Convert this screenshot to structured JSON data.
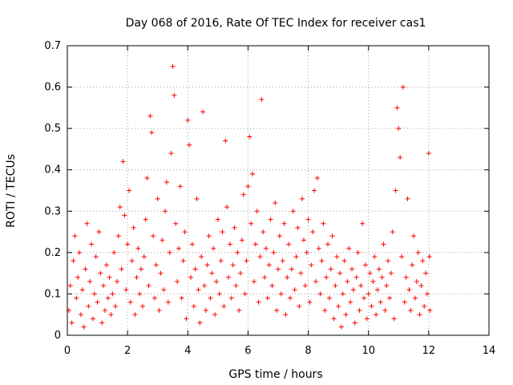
{
  "chart_data": {
    "type": "scatter",
    "title": "Day 068 of 2016, Rate Of TEC Index for receiver cas1",
    "xlabel": "GPS time / hours",
    "ylabel": "ROTI / TECUs",
    "xlim": [
      0,
      14
    ],
    "ylim": [
      0,
      0.7
    ],
    "x_ticks": [
      0,
      2,
      4,
      6,
      8,
      10,
      12,
      14
    ],
    "x_tick_labels": [
      "0",
      "2",
      "4",
      "6",
      "8",
      "10",
      "12",
      "14"
    ],
    "y_ticks": [
      0,
      0.1,
      0.2,
      0.3,
      0.4,
      0.5,
      0.6,
      0.7
    ],
    "y_tick_labels": [
      "0",
      "0.1",
      "0.2",
      "0.3",
      "0.4",
      "0.5",
      "0.6",
      "0.7"
    ],
    "grid": true,
    "marker": "+",
    "color": "#ff0000",
    "series": [
      {
        "name": "ROTI",
        "points": [
          [
            0.05,
            0.06
          ],
          [
            0.1,
            0.12
          ],
          [
            0.15,
            0.03
          ],
          [
            0.2,
            0.18
          ],
          [
            0.25,
            0.24
          ],
          [
            0.3,
            0.09
          ],
          [
            0.35,
            0.14
          ],
          [
            0.4,
            0.2
          ],
          [
            0.45,
            0.05
          ],
          [
            0.5,
            0.11
          ],
          [
            0.55,
            0.02
          ],
          [
            0.6,
            0.16
          ],
          [
            0.65,
            0.27
          ],
          [
            0.7,
            0.07
          ],
          [
            0.75,
            0.13
          ],
          [
            0.8,
            0.22
          ],
          [
            0.85,
            0.04
          ],
          [
            0.9,
            0.1
          ],
          [
            0.95,
            0.19
          ],
          [
            1.0,
            0.08
          ],
          [
            1.05,
            0.25
          ],
          [
            1.1,
            0.15
          ],
          [
            1.15,
            0.03
          ],
          [
            1.2,
            0.12
          ],
          [
            1.25,
            0.06
          ],
          [
            1.3,
            0.17
          ],
          [
            1.35,
            0.09
          ],
          [
            1.4,
            0.14
          ],
          [
            1.45,
            0.05
          ],
          [
            1.5,
            0.1
          ],
          [
            1.55,
            0.2
          ],
          [
            1.6,
            0.07
          ],
          [
            1.65,
            0.13
          ],
          [
            1.7,
            0.24
          ],
          [
            1.75,
            0.31
          ],
          [
            1.8,
            0.16
          ],
          [
            1.85,
            0.42
          ],
          [
            1.9,
            0.29
          ],
          [
            1.95,
            0.11
          ],
          [
            2.0,
            0.22
          ],
          [
            2.05,
            0.35
          ],
          [
            2.1,
            0.08
          ],
          [
            2.15,
            0.18
          ],
          [
            2.2,
            0.26
          ],
          [
            2.25,
            0.05
          ],
          [
            2.3,
            0.14
          ],
          [
            2.35,
            0.21
          ],
          [
            2.4,
            0.1
          ],
          [
            2.45,
            0.16
          ],
          [
            2.5,
            0.07
          ],
          [
            2.55,
            0.19
          ],
          [
            2.6,
            0.28
          ],
          [
            2.65,
            0.38
          ],
          [
            2.7,
            0.12
          ],
          [
            2.75,
            0.53
          ],
          [
            2.8,
            0.49
          ],
          [
            2.85,
            0.24
          ],
          [
            2.9,
            0.09
          ],
          [
            2.95,
            0.17
          ],
          [
            3.0,
            0.33
          ],
          [
            3.05,
            0.06
          ],
          [
            3.1,
            0.15
          ],
          [
            3.15,
            0.23
          ],
          [
            3.2,
            0.11
          ],
          [
            3.25,
            0.3
          ],
          [
            3.3,
            0.37
          ],
          [
            3.35,
            0.08
          ],
          [
            3.4,
            0.2
          ],
          [
            3.45,
            0.44
          ],
          [
            3.5,
            0.65
          ],
          [
            3.55,
            0.58
          ],
          [
            3.6,
            0.27
          ],
          [
            3.65,
            0.13
          ],
          [
            3.7,
            0.21
          ],
          [
            3.75,
            0.36
          ],
          [
            3.8,
            0.09
          ],
          [
            3.85,
            0.18
          ],
          [
            3.9,
            0.25
          ],
          [
            3.95,
            0.04
          ],
          [
            4.0,
            0.52
          ],
          [
            4.05,
            0.46
          ],
          [
            4.1,
            0.14
          ],
          [
            4.15,
            0.22
          ],
          [
            4.2,
            0.07
          ],
          [
            4.25,
            0.16
          ],
          [
            4.3,
            0.33
          ],
          [
            4.35,
            0.11
          ],
          [
            4.4,
            0.03
          ],
          [
            4.45,
            0.19
          ],
          [
            4.5,
            0.54
          ],
          [
            4.55,
            0.12
          ],
          [
            4.6,
            0.06
          ],
          [
            4.65,
            0.17
          ],
          [
            4.7,
            0.24
          ],
          [
            4.75,
            0.09
          ],
          [
            4.8,
            0.15
          ],
          [
            4.85,
            0.21
          ],
          [
            4.9,
            0.05
          ],
          [
            4.95,
            0.13
          ],
          [
            5.0,
            0.28
          ],
          [
            5.05,
            0.1
          ],
          [
            5.1,
            0.18
          ],
          [
            5.15,
            0.25
          ],
          [
            5.2,
            0.07
          ],
          [
            5.25,
            0.47
          ],
          [
            5.3,
            0.31
          ],
          [
            5.35,
            0.14
          ],
          [
            5.4,
            0.22
          ],
          [
            5.45,
            0.09
          ],
          [
            5.5,
            0.17
          ],
          [
            5.55,
            0.26
          ],
          [
            5.6,
            0.12
          ],
          [
            5.65,
            0.2
          ],
          [
            5.7,
            0.06
          ],
          [
            5.75,
            0.15
          ],
          [
            5.8,
            0.23
          ],
          [
            5.85,
            0.34
          ],
          [
            5.9,
            0.1
          ],
          [
            5.95,
            0.18
          ],
          [
            6.0,
            0.36
          ],
          [
            6.05,
            0.48
          ],
          [
            6.1,
            0.27
          ],
          [
            6.15,
            0.39
          ],
          [
            6.2,
            0.13
          ],
          [
            6.25,
            0.22
          ],
          [
            6.3,
            0.3
          ],
          [
            6.35,
            0.08
          ],
          [
            6.4,
            0.19
          ],
          [
            6.45,
            0.57
          ],
          [
            6.5,
            0.25
          ],
          [
            6.55,
            0.14
          ],
          [
            6.6,
            0.21
          ],
          [
            6.65,
            0.09
          ],
          [
            6.7,
            0.17
          ],
          [
            6.75,
            0.28
          ],
          [
            6.8,
            0.12
          ],
          [
            6.85,
            0.2
          ],
          [
            6.9,
            0.32
          ],
          [
            6.95,
            0.06
          ],
          [
            7.0,
            0.16
          ],
          [
            7.05,
            0.24
          ],
          [
            7.1,
            0.1
          ],
          [
            7.15,
            0.18
          ],
          [
            7.2,
            0.27
          ],
          [
            7.25,
            0.05
          ],
          [
            7.3,
            0.14
          ],
          [
            7.35,
            0.22
          ],
          [
            7.4,
            0.09
          ],
          [
            7.45,
            0.16
          ],
          [
            7.5,
            0.3
          ],
          [
            7.55,
            0.11
          ],
          [
            7.6,
            0.19
          ],
          [
            7.65,
            0.26
          ],
          [
            7.7,
            0.07
          ],
          [
            7.75,
            0.15
          ],
          [
            7.8,
            0.33
          ],
          [
            7.85,
            0.23
          ],
          [
            7.9,
            0.12
          ],
          [
            7.95,
            0.2
          ],
          [
            8.0,
            0.28
          ],
          [
            8.05,
            0.08
          ],
          [
            8.1,
            0.17
          ],
          [
            8.15,
            0.25
          ],
          [
            8.2,
            0.35
          ],
          [
            8.25,
            0.13
          ],
          [
            8.3,
            0.38
          ],
          [
            8.35,
            0.21
          ],
          [
            8.4,
            0.1
          ],
          [
            8.45,
            0.18
          ],
          [
            8.5,
            0.27
          ],
          [
            8.55,
            0.06
          ],
          [
            8.6,
            0.14
          ],
          [
            8.65,
            0.22
          ],
          [
            8.7,
            0.09
          ],
          [
            8.75,
            0.16
          ],
          [
            8.8,
            0.24
          ],
          [
            8.85,
            0.04
          ],
          [
            8.9,
            0.12
          ],
          [
            8.95,
            0.19
          ],
          [
            9.0,
            0.07
          ],
          [
            9.05,
            0.15
          ],
          [
            9.1,
            0.02
          ],
          [
            9.15,
            0.1
          ],
          [
            9.2,
            0.18
          ],
          [
            9.25,
            0.05
          ],
          [
            9.3,
            0.13
          ],
          [
            9.35,
            0.21
          ],
          [
            9.4,
            0.08
          ],
          [
            9.45,
            0.16
          ],
          [
            9.5,
            0.11
          ],
          [
            9.55,
            0.03
          ],
          [
            9.6,
            0.14
          ],
          [
            9.65,
            0.2
          ],
          [
            9.7,
            0.06
          ],
          [
            9.75,
            0.12
          ],
          [
            9.8,
            0.27
          ],
          [
            9.85,
            0.09
          ],
          [
            9.9,
            0.17
          ],
          [
            9.95,
            0.04
          ],
          [
            10.0,
            0.1
          ],
          [
            10.05,
            0.15
          ],
          [
            10.1,
            0.07
          ],
          [
            10.15,
            0.13
          ],
          [
            10.2,
            0.19
          ],
          [
            10.25,
            0.05
          ],
          [
            10.3,
            0.11
          ],
          [
            10.35,
            0.16
          ],
          [
            10.4,
            0.08
          ],
          [
            10.45,
            0.14
          ],
          [
            10.5,
            0.22
          ],
          [
            10.55,
            0.06
          ],
          [
            10.6,
            0.12
          ],
          [
            10.65,
            0.18
          ],
          [
            10.7,
            0.09
          ],
          [
            10.75,
            0.15
          ],
          [
            10.8,
            0.25
          ],
          [
            10.85,
            0.04
          ],
          [
            10.9,
            0.35
          ],
          [
            10.95,
            0.55
          ],
          [
            11.0,
            0.5
          ],
          [
            11.05,
            0.43
          ],
          [
            11.1,
            0.19
          ],
          [
            11.15,
            0.6
          ],
          [
            11.2,
            0.08
          ],
          [
            11.25,
            0.14
          ],
          [
            11.3,
            0.33
          ],
          [
            11.35,
            0.11
          ],
          [
            11.4,
            0.06
          ],
          [
            11.45,
            0.17
          ],
          [
            11.5,
            0.24
          ],
          [
            11.55,
            0.09
          ],
          [
            11.6,
            0.13
          ],
          [
            11.65,
            0.2
          ],
          [
            11.7,
            0.05
          ],
          [
            11.75,
            0.12
          ],
          [
            11.8,
            0.18
          ],
          [
            11.85,
            0.07
          ],
          [
            11.9,
            0.15
          ],
          [
            11.95,
            0.1
          ],
          [
            12.0,
            0.44
          ],
          [
            12.02,
            0.19
          ],
          [
            12.04,
            0.06
          ]
        ]
      }
    ]
  }
}
